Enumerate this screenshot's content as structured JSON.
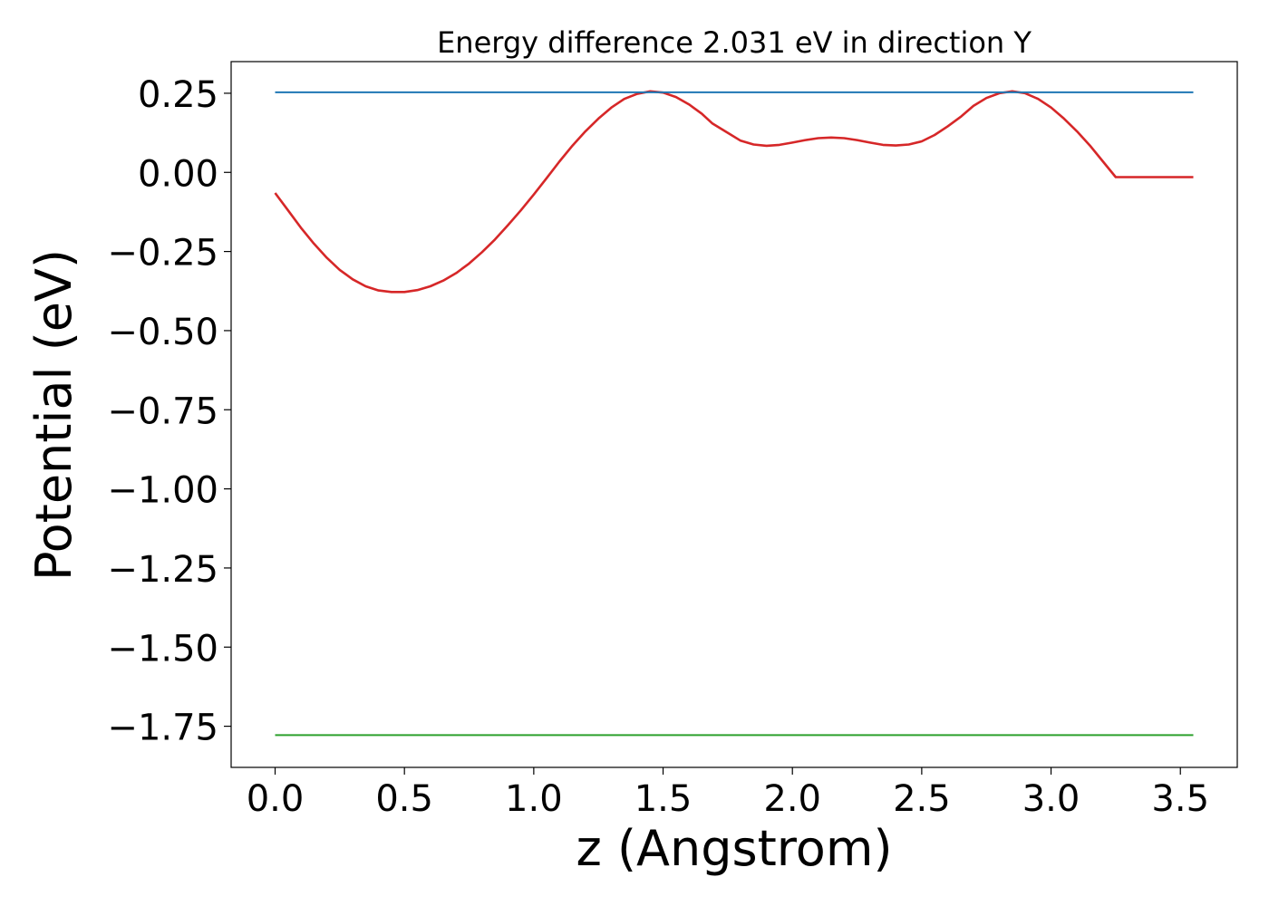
{
  "chart_data": {
    "type": "line",
    "title": "Energy difference 2.031 eV in direction Y",
    "xlabel": "z (Angstrom)",
    "ylabel": "Potential (eV)",
    "xlim": [
      -0.17,
      3.72
    ],
    "ylim": [
      -1.88,
      0.35
    ],
    "xticks": [
      0.0,
      0.5,
      1.0,
      1.5,
      2.0,
      2.5,
      3.0,
      3.5
    ],
    "xtick_labels": [
      "0.0",
      "0.5",
      "1.0",
      "1.5",
      "2.0",
      "2.5",
      "3.0",
      "3.5"
    ],
    "yticks": [
      0.25,
      0.0,
      -0.25,
      -0.5,
      -0.75,
      -1.0,
      -1.25,
      -1.5,
      -1.75
    ],
    "ytick_labels": [
      "0.25",
      "0.00",
      "−0.25",
      "−0.50",
      "−0.75",
      "−1.00",
      "−1.25",
      "−1.50",
      "−1.75"
    ],
    "grid": false,
    "series": [
      {
        "color": "#d62728",
        "x": [
          0.0,
          0.05,
          0.1,
          0.15,
          0.2,
          0.25,
          0.3,
          0.35,
          0.4,
          0.45,
          0.5,
          0.55,
          0.6,
          0.65,
          0.7,
          0.75,
          0.8,
          0.85,
          0.9,
          0.95,
          1.0,
          1.05,
          1.1,
          1.15,
          1.2,
          1.25,
          1.3,
          1.35,
          1.4,
          1.45,
          1.5,
          1.55,
          1.6,
          1.65,
          1.69,
          1.75,
          1.8,
          1.85,
          1.9,
          1.95,
          2.0,
          2.05,
          2.1,
          2.15,
          2.2,
          2.25,
          2.3,
          2.35,
          2.4,
          2.45,
          2.5,
          2.55,
          2.6,
          2.65,
          2.7,
          2.75,
          2.8,
          2.85,
          2.9,
          2.95,
          3.0,
          3.05,
          3.1,
          3.15,
          3.2,
          3.25,
          3.3,
          3.35,
          3.4,
          3.45,
          3.5,
          3.55
        ],
        "y": [
          -0.065,
          -0.12,
          -0.175,
          -0.225,
          -0.27,
          -0.308,
          -0.338,
          -0.36,
          -0.373,
          -0.378,
          -0.378,
          -0.372,
          -0.36,
          -0.342,
          -0.318,
          -0.288,
          -0.252,
          -0.212,
          -0.167,
          -0.12,
          -0.07,
          -0.018,
          0.035,
          0.085,
          0.13,
          0.17,
          0.205,
          0.232,
          0.248,
          0.256,
          0.252,
          0.238,
          0.215,
          0.185,
          0.155,
          0.125,
          0.1,
          0.088,
          0.084,
          0.087,
          0.094,
          0.102,
          0.108,
          0.11,
          0.108,
          0.102,
          0.094,
          0.087,
          0.085,
          0.088,
          0.098,
          0.118,
          0.145,
          0.175,
          0.21,
          0.235,
          0.25,
          0.256,
          0.25,
          0.232,
          0.205,
          0.17,
          0.13,
          0.085,
          0.035,
          -0.015,
          -0.015,
          -0.015,
          -0.015,
          -0.015,
          -0.015,
          -0.015
        ]
      },
      {
        "color": "#1f77b4",
        "x": [
          0.0,
          3.55
        ],
        "y": [
          0.253,
          0.253
        ]
      },
      {
        "color": "#2ca02c",
        "x": [
          0.0,
          3.55
        ],
        "y": [
          -1.778,
          -1.778
        ]
      }
    ]
  }
}
